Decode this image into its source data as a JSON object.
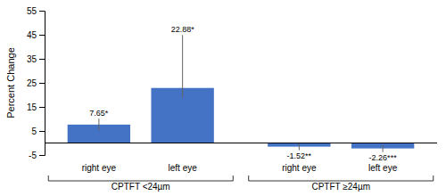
{
  "chart_data": {
    "type": "bar",
    "ylabel": "Percent Change",
    "groups": [
      "CPTFT <24µm",
      "CPTFT ≥24µm"
    ],
    "categories": [
      "right eye",
      "left eye",
      "right eye",
      "left eye"
    ],
    "values": [
      7.65,
      22.88,
      -1.52,
      -2.26
    ],
    "error_upper": [
      2.5,
      22.0,
      1.5,
      1.5
    ],
    "error_lower": [
      2.5,
      4.0,
      1.5,
      1.5
    ],
    "data_labels": true,
    "value_labels": [
      "7.65*",
      "22.88*",
      "-1.52**",
      "-2.26***"
    ],
    "color": "#4472C4",
    "ylim": [
      -5,
      55
    ],
    "yticks": [
      -5,
      5,
      15,
      25,
      35,
      45,
      55
    ],
    "grid": false
  }
}
